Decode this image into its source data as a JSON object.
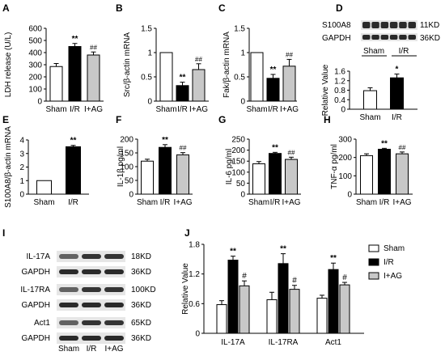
{
  "colors": {
    "sham": "#ffffff",
    "ir": "#000000",
    "ag": "#c8c8c8",
    "edge": "#000000",
    "blot_bg": "#e6e6e6",
    "band": "#2a2a2a"
  },
  "chart_data": [
    {
      "id": "A",
      "type": "bar",
      "panel_label": "A",
      "ylabel": "LDH release (U/L)",
      "categories": [
        "Sham",
        "I/R",
        "I+AG"
      ],
      "values": [
        285,
        450,
        380
      ],
      "errors": [
        25,
        25,
        25
      ],
      "ylim": [
        0,
        600
      ],
      "yticks": [
        0,
        100,
        200,
        300,
        400,
        500,
        600
      ],
      "sig": [
        "",
        "**",
        "##"
      ]
    },
    {
      "id": "B",
      "type": "bar",
      "panel_label": "B",
      "ylabel": "Src/β-actin mRNA",
      "categories": [
        "Sham",
        "I/R",
        "I+AG"
      ],
      "values": [
        1.0,
        0.32,
        0.65
      ],
      "errors": [
        0,
        0.07,
        0.12
      ],
      "ylim": [
        0,
        1.5
      ],
      "yticks": [
        0,
        0.5,
        1.0,
        1.5
      ],
      "sig": [
        "",
        "**",
        "##"
      ]
    },
    {
      "id": "C",
      "type": "bar",
      "panel_label": "C",
      "ylabel": "Fak/β-actin mRNA",
      "categories": [
        "Sham",
        "I/R",
        "I+AG"
      ],
      "values": [
        1.0,
        0.47,
        0.72
      ],
      "errors": [
        0,
        0.08,
        0.14
      ],
      "ylim": [
        0,
        1.5
      ],
      "yticks": [
        0,
        0.5,
        1.0,
        1.5
      ],
      "sig": [
        "",
        "**",
        "##"
      ]
    },
    {
      "id": "D",
      "type": "bar",
      "panel_label": "D",
      "ylabel": "Relative Value",
      "categories": [
        "Sham",
        "I/R"
      ],
      "values": [
        0.78,
        1.32
      ],
      "errors": [
        0.12,
        0.16
      ],
      "ylim": [
        0,
        1.6
      ],
      "yticks": [
        0,
        0.4,
        0.8,
        1.2,
        1.6
      ],
      "sig": [
        "",
        "*"
      ],
      "blot": {
        "rows": [
          "S100A8",
          "GAPDH"
        ],
        "kd": [
          "11KD",
          "36KD"
        ],
        "group_labels": [
          "Sham",
          "I/R"
        ]
      }
    },
    {
      "id": "E",
      "type": "bar",
      "panel_label": "E",
      "ylabel": "S100A8/β-actin mRNA",
      "categories": [
        "Sham",
        "I/R"
      ],
      "values": [
        1.0,
        3.5
      ],
      "errors": [
        0,
        0.1
      ],
      "ylim": [
        0,
        4
      ],
      "yticks": [
        0,
        1,
        2,
        3,
        4
      ],
      "sig": [
        "",
        "**"
      ]
    },
    {
      "id": "F",
      "type": "bar",
      "panel_label": "F",
      "ylabel": "IL-1β pg/ml",
      "categories": [
        "Sham",
        "I/R",
        "I+AG"
      ],
      "values": [
        120,
        170,
        143
      ],
      "errors": [
        7,
        10,
        8
      ],
      "ylim": [
        0,
        200
      ],
      "yticks": [
        0,
        50,
        100,
        150,
        200
      ],
      "sig": [
        "",
        "**",
        "##"
      ]
    },
    {
      "id": "G",
      "type": "bar",
      "panel_label": "G",
      "ylabel": "IL-6 pg/ml",
      "categories": [
        "Sham",
        "I/R",
        "I+AG"
      ],
      "values": [
        138,
        185,
        158
      ],
      "errors": [
        10,
        5,
        10
      ],
      "ylim": [
        0,
        250
      ],
      "yticks": [
        0,
        50,
        100,
        150,
        200,
        250
      ],
      "sig": [
        "",
        "**",
        "##"
      ]
    },
    {
      "id": "H",
      "type": "bar",
      "panel_label": "H",
      "ylabel": "TNF-α pg/ml",
      "categories": [
        "Sham",
        "I/R",
        "I+AG"
      ],
      "values": [
        210,
        245,
        220
      ],
      "errors": [
        10,
        5,
        10
      ],
      "ylim": [
        0,
        300
      ],
      "yticks": [
        0,
        100,
        200,
        300
      ],
      "sig": [
        "",
        "**",
        "##"
      ]
    },
    {
      "id": "J",
      "type": "bar",
      "panel_label": "J",
      "ylabel": "Relative Value",
      "categories": [
        "IL-17A",
        "IL-17RA",
        "Act1"
      ],
      "series": [
        {
          "name": "Sham",
          "values": [
            0.58,
            0.68,
            0.71
          ],
          "errors": [
            0.08,
            0.15,
            0.06
          ]
        },
        {
          "name": "I/R",
          "values": [
            1.48,
            1.41,
            1.29
          ],
          "errors": [
            0.08,
            0.2,
            0.13
          ]
        },
        {
          "name": "I+AG",
          "values": [
            0.96,
            0.89,
            0.98
          ],
          "errors": [
            0.1,
            0.08,
            0.05
          ]
        }
      ],
      "ylim": [
        0,
        1.8
      ],
      "yticks": [
        0,
        0.6,
        1.2,
        1.8
      ],
      "sig": [
        [
          "",
          "**",
          "#"
        ],
        [
          "",
          "**",
          "#"
        ],
        [
          "",
          "**",
          "#"
        ]
      ],
      "legend": "top-right"
    }
  ],
  "blot_I": {
    "panel_label": "I",
    "rows": [
      {
        "label": "IL-17A",
        "kd": "18KD"
      },
      {
        "label": "GAPDH",
        "kd": "36KD"
      },
      {
        "label": "IL-17RA",
        "kd": "100KD"
      },
      {
        "label": "GAPDH",
        "kd": "36KD"
      },
      {
        "label": "Act1",
        "kd": "65KD"
      },
      {
        "label": "GAPDH",
        "kd": "36KD"
      }
    ],
    "group_labels": [
      "Sham",
      "I/R",
      "I+AG"
    ]
  }
}
